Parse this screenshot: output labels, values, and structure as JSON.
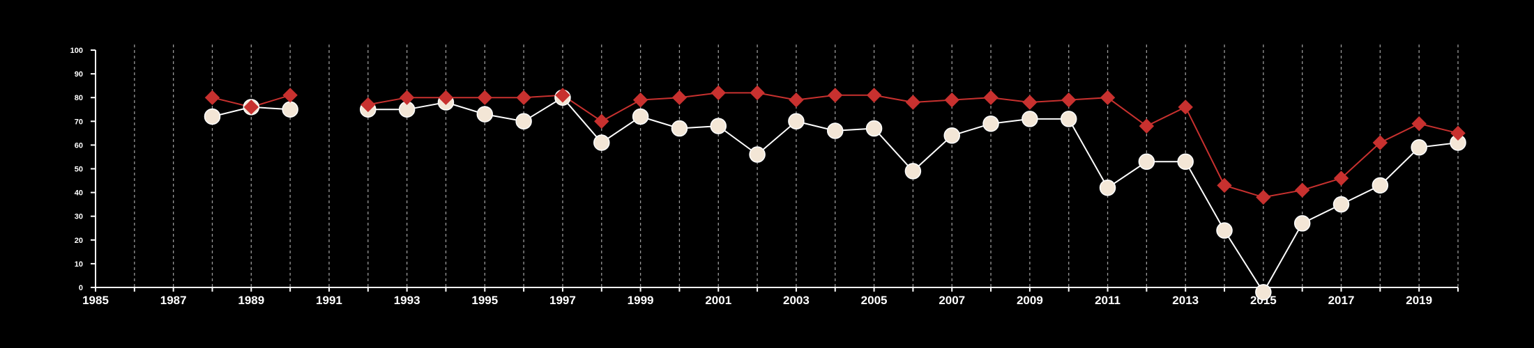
{
  "chart_data": {
    "type": "line",
    "title": "",
    "xlabel": "",
    "ylabel": "",
    "xlim": [
      1985,
      2020
    ],
    "ylim": [
      0,
      100
    ],
    "x_ticks": [
      "1985",
      "1987",
      "1989",
      "1991",
      "1993",
      "1995",
      "1997",
      "1999",
      "2001",
      "2003",
      "2005",
      "2007",
      "2009",
      "2011",
      "2013",
      "2015",
      "2017",
      "2019"
    ],
    "y_ticks": [
      "0",
      "10",
      "20",
      "30",
      "40",
      "50",
      "60",
      "70",
      "80",
      "90",
      "100"
    ],
    "grid": "vertical dashed lines at every year",
    "legend": "none",
    "series": [
      {
        "marker": "diamond",
        "color": "#c8312f",
        "points": [
          [
            1988,
            80
          ],
          [
            1989,
            76
          ],
          [
            1990,
            81
          ],
          [
            1992,
            77
          ],
          [
            1993,
            80
          ],
          [
            1994,
            80
          ],
          [
            1995,
            80
          ],
          [
            1996,
            80
          ],
          [
            1997,
            81
          ],
          [
            1998,
            70
          ],
          [
            1999,
            79
          ],
          [
            2000,
            80
          ],
          [
            2001,
            82
          ],
          [
            2002,
            82
          ],
          [
            2003,
            79
          ],
          [
            2004,
            81
          ],
          [
            2005,
            81
          ],
          [
            2006,
            78
          ],
          [
            2007,
            79
          ],
          [
            2008,
            80
          ],
          [
            2009,
            78
          ],
          [
            2010,
            79
          ],
          [
            2011,
            80
          ],
          [
            2012,
            68
          ],
          [
            2013,
            76
          ],
          [
            2014,
            43
          ],
          [
            2015,
            38
          ],
          [
            2016,
            41
          ],
          [
            2017,
            46
          ],
          [
            2018,
            61
          ],
          [
            2019,
            69
          ],
          [
            2020,
            65
          ]
        ]
      },
      {
        "marker": "circle",
        "color": "#f3e6d6",
        "points": [
          [
            1988,
            72
          ],
          [
            1989,
            76
          ],
          [
            1990,
            75
          ],
          [
            1992,
            75
          ],
          [
            1993,
            75
          ],
          [
            1994,
            78
          ],
          [
            1995,
            73
          ],
          [
            1996,
            70
          ],
          [
            1997,
            80
          ],
          [
            1998,
            61
          ],
          [
            1999,
            72
          ],
          [
            2000,
            67
          ],
          [
            2001,
            68
          ],
          [
            2002,
            56
          ],
          [
            2003,
            70
          ],
          [
            2004,
            66
          ],
          [
            2005,
            67
          ],
          [
            2006,
            49
          ],
          [
            2007,
            64
          ],
          [
            2008,
            69
          ],
          [
            2009,
            71
          ],
          [
            2010,
            71
          ],
          [
            2011,
            42
          ],
          [
            2012,
            53
          ],
          [
            2013,
            53
          ],
          [
            2014,
            24
          ],
          [
            2015,
            -2
          ],
          [
            2016,
            27
          ],
          [
            2017,
            35
          ],
          [
            2018,
            43
          ],
          [
            2019,
            59
          ],
          [
            2020,
            61
          ]
        ]
      }
    ]
  }
}
